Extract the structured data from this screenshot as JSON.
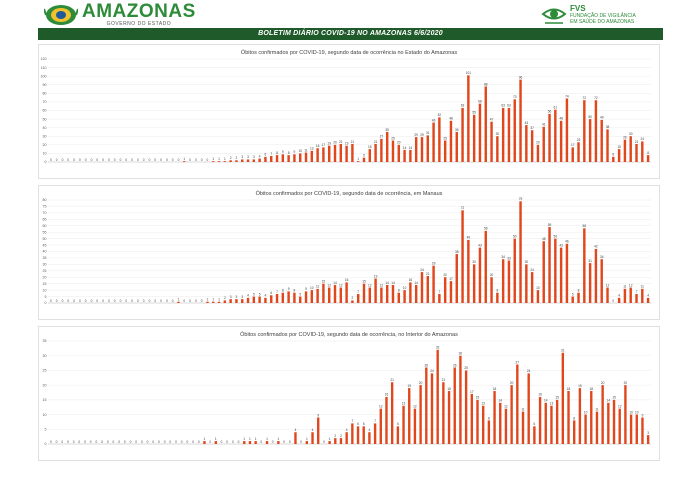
{
  "header": {
    "brand": "AMAZONAS",
    "brand_sub": "GOVERNO DO ESTADO",
    "fvs_name": "FVS",
    "fvs_sub1": "FUNDAÇÃO DE VIGILÂNCIA",
    "fvs_sub2": "EM SAÚDE DO AMAZONAS"
  },
  "banner": "BOLETIM DIÁRIO COVID-19 NO AMAZONAS 6/6/2020",
  "colors": {
    "bar": "#e0471d",
    "banner": "#1f5a2a",
    "brand": "#2e8b3a",
    "grid": "#e6e6e6"
  },
  "chart_data": [
    {
      "type": "bar",
      "title": "Óbitos confirmados por COVID-19, segundo data de ocorrência no Estado do Amazonas",
      "ylim": [
        0,
        120
      ],
      "yticks": [
        0,
        10,
        20,
        30,
        40,
        50,
        60,
        70,
        80,
        90,
        100,
        110,
        120
      ],
      "values": [
        0,
        0,
        0,
        0,
        0,
        0,
        0,
        0,
        0,
        0,
        0,
        0,
        0,
        0,
        0,
        0,
        0,
        0,
        0,
        0,
        0,
        0,
        0,
        1,
        0,
        0,
        0,
        0,
        1,
        1,
        1,
        2,
        2,
        3,
        3,
        3,
        4,
        6,
        7,
        8,
        9,
        8,
        9,
        10,
        11,
        13,
        16,
        17,
        19,
        20,
        21,
        19,
        21,
        1,
        5,
        15,
        21,
        27,
        35,
        25,
        20,
        14,
        14,
        29,
        29,
        31,
        46,
        52,
        25,
        48,
        35,
        63,
        101,
        55,
        68,
        88,
        47,
        30,
        63,
        63,
        73,
        96,
        43,
        37,
        20,
        41,
        56,
        61,
        48,
        74,
        17,
        23,
        72,
        50,
        72,
        49,
        38,
        6,
        15,
        26,
        30,
        21,
        24,
        8
      ]
    },
    {
      "type": "bar",
      "title": "Óbitos confirmados por COVID-19, segundo data de ocorrência, em Manaus",
      "ylim": [
        0,
        80
      ],
      "yticks": [
        0,
        5,
        10,
        15,
        20,
        25,
        30,
        35,
        40,
        45,
        50,
        55,
        60,
        65,
        70,
        75,
        80
      ],
      "values": [
        0,
        0,
        0,
        0,
        0,
        0,
        0,
        0,
        0,
        0,
        0,
        0,
        0,
        0,
        0,
        0,
        0,
        0,
        0,
        0,
        0,
        0,
        1,
        0,
        0,
        0,
        0,
        1,
        1,
        1,
        2,
        3,
        3,
        3,
        4,
        5,
        5,
        4,
        6,
        7,
        8,
        9,
        8,
        5,
        9,
        10,
        11,
        15,
        12,
        14,
        12,
        16,
        2,
        7,
        15,
        12,
        19,
        12,
        14,
        14,
        8,
        10,
        16,
        14,
        24,
        21,
        29,
        7,
        20,
        17,
        38,
        72,
        49,
        30,
        43,
        56,
        20,
        8,
        34,
        33,
        50,
        79,
        30,
        24,
        10,
        48,
        59,
        50,
        43,
        46,
        5,
        8,
        58,
        31,
        42,
        34,
        12,
        0,
        4,
        11,
        12,
        7,
        11,
        4
      ]
    },
    {
      "type": "bar",
      "title": "Óbitos  confirmados por COVID-19, segundo data de ocorrência, no Interior do Amazonas",
      "ylim": [
        0,
        35
      ],
      "yticks": [
        0,
        5,
        10,
        15,
        20,
        25,
        30,
        35
      ],
      "values": [
        0,
        0,
        0,
        0,
        0,
        0,
        0,
        0,
        0,
        0,
        0,
        0,
        0,
        0,
        0,
        0,
        0,
        0,
        0,
        0,
        0,
        0,
        0,
        0,
        0,
        0,
        0,
        1,
        0,
        1,
        0,
        0,
        0,
        0,
        1,
        1,
        1,
        0,
        1,
        0,
        1,
        0,
        0,
        4,
        0,
        1,
        4,
        9,
        0,
        1,
        2,
        2,
        4,
        7,
        6,
        6,
        4,
        7,
        12,
        16,
        21,
        6,
        13,
        19,
        12,
        20,
        26,
        24,
        32,
        21,
        18,
        26,
        30,
        25,
        17,
        15,
        13,
        8,
        18,
        14,
        12,
        20,
        27,
        11,
        24,
        6,
        16,
        14,
        13,
        15,
        31,
        18,
        8,
        19,
        10,
        18,
        11,
        20,
        14,
        15,
        12,
        20,
        10,
        10,
        9,
        3
      ]
    }
  ]
}
